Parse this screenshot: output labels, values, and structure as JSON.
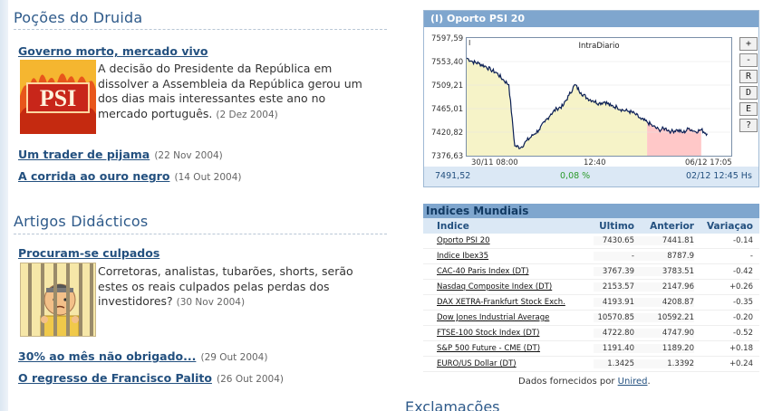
{
  "druida": {
    "title": "Poções do Druida",
    "feature": {
      "link": "Governo morto, mercado vivo",
      "thumb_text": "PSI",
      "text": "A decisão do Presidente da República em dissolver a Assembleia da República gerou um dos dias mais interessantes este ano no mercado português.",
      "date": "(2 Dez 2004)"
    },
    "items": [
      {
        "link": "Um trader de pijama",
        "date": "(22 Nov 2004)"
      },
      {
        "link": "A corrida ao ouro negro",
        "date": "(14 Out 2004)"
      }
    ]
  },
  "artigos": {
    "title": "Artigos Didácticos",
    "feature": {
      "link": "Procuram-se culpados",
      "text": "Corretoras, analistas, tubarões, shorts, serão estes os reais culpados pelas perdas dos investidores?",
      "date": "(30 Nov 2004)"
    },
    "items": [
      {
        "link": "30% ao mês não obrigado...",
        "date": "(29 Out 2004)"
      },
      {
        "link": "O regresso de Francisco Palito",
        "date": "(26 Out 2004)"
      }
    ]
  },
  "chart_panel": {
    "header": "(I)  Oporto PSI 20",
    "buttons": [
      "+",
      "-",
      "R",
      "D",
      "E",
      "?"
    ],
    "footer_value": "7491,52",
    "footer_change": "0,08 %",
    "footer_time": "02/12 12:45 Hs",
    "change_color": "#2a9a2a"
  },
  "chart_data": {
    "type": "line",
    "title": "IntraDiario",
    "y_ticks": [
      "7597,59",
      "7553,40",
      "7509,21",
      "7465,01",
      "7420,82",
      "7376,63"
    ],
    "x_ticks": [
      "30/11 08:00",
      "12:40",
      "06/12 17:05"
    ],
    "ylim": [
      7376.63,
      7597.59
    ],
    "series": [
      {
        "x": [
          0,
          1,
          2,
          3,
          4,
          5,
          6,
          7,
          8,
          9,
          10,
          11,
          12,
          13,
          14,
          15,
          16,
          17,
          18,
          19,
          20,
          21,
          22,
          23,
          24,
          25,
          26,
          27,
          28,
          29,
          30,
          31,
          32,
          33,
          34,
          35,
          36,
          37,
          38,
          39,
          40
        ],
        "values": [
          7560,
          7553,
          7550,
          7545,
          7538,
          7532,
          7520,
          7510,
          7395,
          7392,
          7405,
          7415,
          7425,
          7440,
          7455,
          7465,
          7470,
          7490,
          7510,
          7495,
          7485,
          7480,
          7475,
          7478,
          7470,
          7468,
          7462,
          7460,
          7455,
          7445,
          7440,
          7432,
          7425,
          7428,
          7422,
          7425,
          7420,
          7428,
          7422,
          7425,
          7418
        ]
      }
    ],
    "shaded_regions": [
      {
        "x_start": 0,
        "x_end": 30,
        "color": "#f6f3c8"
      },
      {
        "x_start": 30,
        "x_end": 39,
        "color": "#ffc8c8"
      }
    ]
  },
  "indices": {
    "title": "Indices Mundiais",
    "headers": [
      "Indice",
      "Ultimo",
      "Anterior",
      "Variaçao"
    ],
    "rows": [
      {
        "name": "Oporto PSI 20",
        "ultimo": "7430.65",
        "anterior": "7441.81",
        "var": "-0.14"
      },
      {
        "name": "Indice Ibex35",
        "ultimo": "-",
        "anterior": "8787.9",
        "var": "-"
      },
      {
        "name": "CAC-40 Paris Index (DT)",
        "ultimo": "3767.39",
        "anterior": "3783.51",
        "var": "-0.42"
      },
      {
        "name": "Nasdaq Composite Index (DT)",
        "ultimo": "2153.57",
        "anterior": "2147.96",
        "var": "+0.26"
      },
      {
        "name": "DAX XETRA-Frankfurt Stock Exch.",
        "ultimo": "4193.91",
        "anterior": "4208.87",
        "var": "-0.35"
      },
      {
        "name": "Dow Jones Industrial Average",
        "ultimo": "10570.85",
        "anterior": "10592.21",
        "var": "-0.20"
      },
      {
        "name": "FTSE-100 Stock Index (DT)",
        "ultimo": "4722.80",
        "anterior": "4747.90",
        "var": "-0.52"
      },
      {
        "name": "S&P 500 Future - CME (DT)",
        "ultimo": "1191.40",
        "anterior": "1189.20",
        "var": "+0.18"
      },
      {
        "name": "EURO/US Dollar (DT)",
        "ultimo": "1.3425",
        "anterior": "1.3392",
        "var": "+0.24"
      }
    ],
    "source_prefix": "Dados fornecidos por",
    "source_link": "Unired",
    "source_suffix": "."
  },
  "bottom": {
    "title": "Exclamações"
  }
}
